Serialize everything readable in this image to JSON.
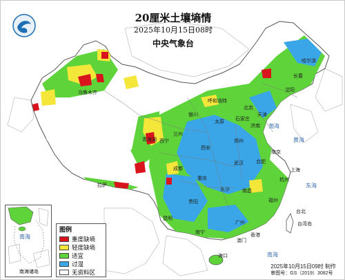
{
  "title": {
    "main": "20厘米土壤墒情",
    "date": "2025年10月15日08时",
    "issuer": "中央气象台"
  },
  "logo": {
    "icon": "cma-logo"
  },
  "legend": {
    "title": "图例",
    "items": [
      {
        "label": "重度缺墒",
        "color": "#d9141c"
      },
      {
        "label": "轻度缺墒",
        "color": "#f5e63a"
      },
      {
        "label": "适宜",
        "color": "#5fd43a"
      },
      {
        "label": "过湿",
        "color": "#3aa6e8"
      },
      {
        "label": "无资料区",
        "color": "#ffffff"
      }
    ]
  },
  "inset": {
    "label": "南海诸岛",
    "sea": "南海"
  },
  "footer": {
    "made": "2025年10月15日09时 制作",
    "review": "审图号：GS（2019）3082号"
  },
  "places": [
    {
      "name": "拉萨"
    },
    {
      "name": "青海湖"
    },
    {
      "name": "西宁"
    },
    {
      "name": "兰州"
    },
    {
      "name": "成都"
    },
    {
      "name": "重庆"
    },
    {
      "name": "贵阳"
    },
    {
      "name": "昆明"
    },
    {
      "name": "南宁"
    },
    {
      "name": "海口"
    },
    {
      "name": "广州"
    },
    {
      "name": "香港"
    },
    {
      "name": "澳门"
    },
    {
      "name": "福州"
    },
    {
      "name": "台北"
    },
    {
      "name": "台湾岛"
    },
    {
      "name": "南昌"
    },
    {
      "name": "长沙"
    },
    {
      "name": "武汉"
    },
    {
      "name": "合肥"
    },
    {
      "name": "南京"
    },
    {
      "name": "上海"
    },
    {
      "name": "杭州"
    },
    {
      "name": "郑州"
    },
    {
      "name": "济南"
    },
    {
      "name": "石家庄"
    },
    {
      "name": "太原"
    },
    {
      "name": "北京"
    },
    {
      "name": "天津"
    },
    {
      "name": "西安"
    },
    {
      "name": "银川"
    },
    {
      "name": "呼和浩特"
    },
    {
      "name": "沈阳"
    },
    {
      "name": "长春"
    },
    {
      "name": "哈尔滨"
    },
    {
      "name": "乌鲁木齐"
    }
  ],
  "seas": [
    {
      "name": "渤海"
    },
    {
      "name": "黄海"
    },
    {
      "name": "东海"
    },
    {
      "name": "南海"
    }
  ]
}
